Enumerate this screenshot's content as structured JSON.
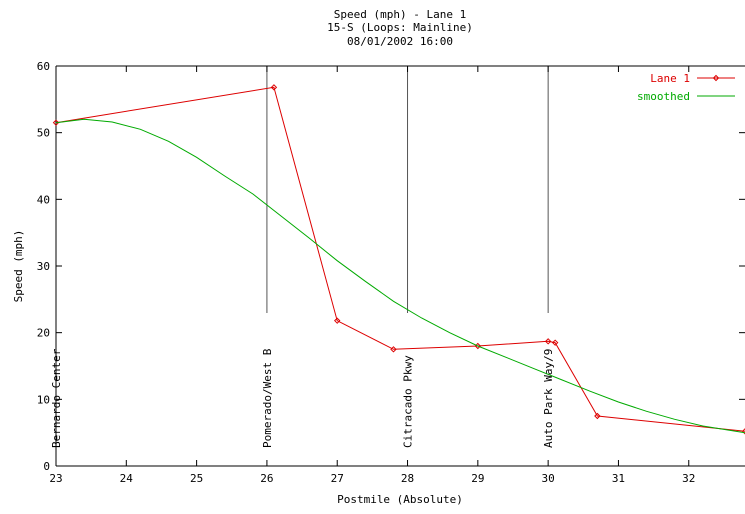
{
  "chart_data": {
    "type": "line",
    "title": "Speed (mph) - Lane 1",
    "subtitle": "15-S (Loops: Mainline)",
    "datetime": "08/01/2002 16:00",
    "xlabel": "Postmile (Absolute)",
    "ylabel": "Speed (mph)",
    "xlim": [
      23,
      32.8
    ],
    "ylim": [
      0,
      60
    ],
    "x_ticks": [
      23,
      24,
      25,
      26,
      27,
      28,
      29,
      30,
      31,
      32
    ],
    "y_ticks": [
      0,
      10,
      20,
      30,
      40,
      50,
      60
    ],
    "grid": false,
    "legend_position": "top-right",
    "series": [
      {
        "name": "Lane 1",
        "color": "#dd0000",
        "markers": true,
        "x": [
          23.0,
          26.1,
          27.0,
          27.8,
          29.0,
          30.0,
          30.1,
          30.7,
          32.8
        ],
        "y": [
          51.5,
          56.8,
          21.8,
          17.5,
          18.0,
          18.7,
          18.5,
          7.5,
          5.2
        ]
      },
      {
        "name": "smoothed",
        "color": "#00aa00",
        "markers": false,
        "x": [
          23.0,
          23.4,
          23.8,
          24.2,
          24.6,
          25.0,
          25.4,
          25.8,
          26.2,
          26.6,
          27.0,
          27.4,
          27.8,
          28.2,
          28.6,
          29.0,
          29.4,
          29.8,
          30.2,
          30.6,
          31.0,
          31.4,
          31.8,
          32.2,
          32.8
        ],
        "y": [
          51.5,
          52.0,
          51.6,
          50.5,
          48.7,
          46.3,
          43.5,
          40.8,
          37.5,
          34.2,
          30.8,
          27.7,
          24.7,
          22.2,
          20.0,
          18.0,
          16.3,
          14.6,
          12.9,
          11.2,
          9.6,
          8.2,
          7.0,
          6.0,
          5.0
        ]
      }
    ],
    "stations": [
      {
        "x": 23.0,
        "label": "Bernardo Center"
      },
      {
        "x": 26.0,
        "label": "Pomerado/West B"
      },
      {
        "x": 28.0,
        "label": "Citracado Pkwy"
      },
      {
        "x": 30.0,
        "label": "Auto Park Way/9"
      }
    ]
  }
}
